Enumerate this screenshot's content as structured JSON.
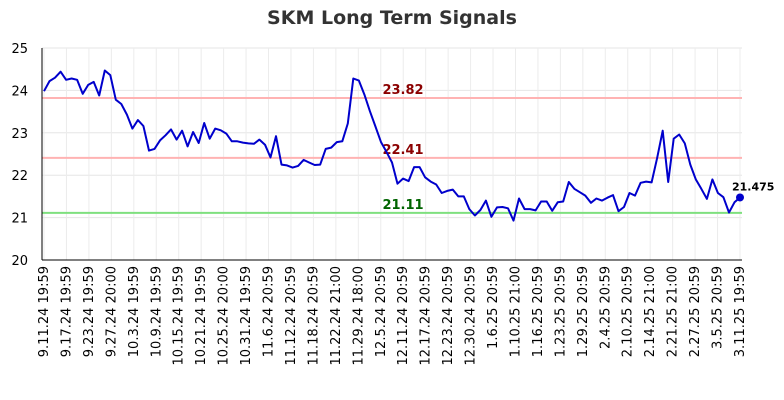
{
  "chart_data": {
    "type": "line",
    "title": "SKM Long Term Signals",
    "xlabel": "",
    "ylabel": "",
    "ylim": [
      20,
      25
    ],
    "yticks": [
      20,
      21,
      22,
      23,
      24,
      25
    ],
    "grid": true,
    "line_color": "#0000cc",
    "x_tick_labels": [
      "9.11.24 19:59",
      "9.17.24 19:59",
      "9.23.24 19:59",
      "9.27.24 20:00",
      "10.3.24 19:59",
      "10.9.24 19:59",
      "10.15.24 19:59",
      "10.21.24 19:59",
      "10.25.24 20:00",
      "10.31.24 19:59",
      "11.6.24 20:59",
      "11.12.24 20:59",
      "11.18.24 20:59",
      "11.22.24 21:00",
      "11.29.24 18:00",
      "12.5.24 20:59",
      "12.11.24 20:59",
      "12.17.24 20:59",
      "12.23.24 20:59",
      "12.30.24 20:59",
      "1.6.25 20:59",
      "1.10.25 21:00",
      "1.16.25 20:59",
      "1.23.25 20:59",
      "1.29.25 20:59",
      "2.4.25 20:59",
      "2.10.25 20:59",
      "2.14.25 21:00",
      "2.21.25 21:00",
      "2.27.25 20:59",
      "3.5.25 20:59",
      "3.11.25 19:59"
    ],
    "values": [
      23.98,
      24.22,
      24.3,
      24.44,
      24.25,
      24.28,
      24.25,
      23.92,
      24.13,
      24.2,
      23.88,
      24.47,
      24.36,
      23.78,
      23.68,
      23.43,
      23.1,
      23.3,
      23.16,
      22.58,
      22.62,
      22.82,
      22.94,
      23.08,
      22.84,
      23.05,
      22.68,
      23.02,
      22.76,
      23.23,
      22.86,
      23.1,
      23.06,
      22.98,
      22.8,
      22.8,
      22.77,
      22.75,
      22.74,
      22.84,
      22.72,
      22.42,
      22.92,
      22.25,
      22.23,
      22.18,
      22.22,
      22.36,
      22.3,
      22.24,
      22.25,
      22.62,
      22.65,
      22.78,
      22.8,
      23.22,
      24.28,
      24.23,
      23.9,
      23.51,
      23.15,
      22.78,
      22.55,
      22.3,
      21.8,
      21.92,
      21.86,
      22.19,
      22.19,
      21.95,
      21.85,
      21.78,
      21.58,
      21.63,
      21.66,
      21.5,
      21.5,
      21.2,
      21.05,
      21.18,
      21.4,
      21.02,
      21.24,
      21.25,
      21.22,
      20.93,
      21.45,
      21.2,
      21.2,
      21.17,
      21.38,
      21.38,
      21.16,
      21.36,
      21.38,
      21.84,
      21.68,
      21.6,
      21.52,
      21.35,
      21.45,
      21.4,
      21.47,
      21.53,
      21.15,
      21.25,
      21.58,
      21.52,
      21.82,
      21.85,
      21.83,
      22.4,
      23.05,
      21.84,
      22.86,
      22.96,
      22.75,
      22.25,
      21.9,
      21.68,
      21.44,
      21.9,
      21.58,
      21.48,
      21.12,
      21.36,
      21.475
    ],
    "reference_lines": [
      {
        "label": "23.82",
        "value": 23.82,
        "color": "#ffb3b3",
        "label_color": "#8b0000"
      },
      {
        "label": "22.41",
        "value": 22.41,
        "color": "#ffb3b3",
        "label_color": "#8b0000"
      },
      {
        "label": "21.11",
        "value": 21.11,
        "color": "#7fe07f",
        "label_color": "#006400"
      }
    ],
    "last_value_label": "21.475"
  }
}
